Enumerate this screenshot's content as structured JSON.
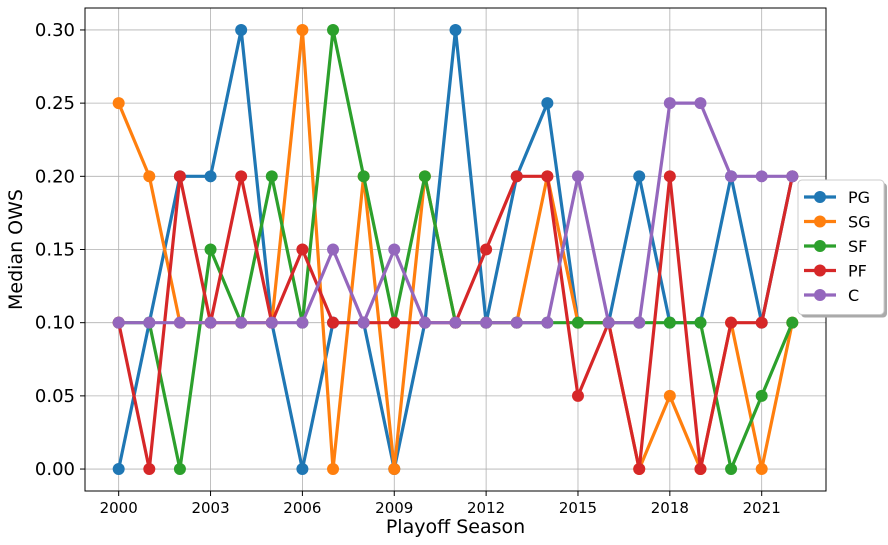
{
  "chart_data": {
    "type": "line",
    "title": "",
    "xlabel": "Playoff Season",
    "ylabel": "Median OWS",
    "xlim": [
      1998.9,
      2023.1
    ],
    "ylim": [
      -0.015,
      0.315
    ],
    "x_ticks": [
      2000,
      2003,
      2006,
      2009,
      2012,
      2015,
      2018,
      2021
    ],
    "y_ticks": [
      0.0,
      0.05,
      0.1,
      0.15,
      0.2,
      0.25,
      0.3
    ],
    "y_tick_labels": [
      "0.00",
      "0.05",
      "0.10",
      "0.15",
      "0.20",
      "0.25",
      "0.30"
    ],
    "grid": true,
    "legend_position": "right",
    "x": [
      2000,
      2001,
      2002,
      2003,
      2004,
      2005,
      2006,
      2007,
      2008,
      2009,
      2010,
      2011,
      2012,
      2013,
      2014,
      2015,
      2016,
      2017,
      2018,
      2019,
      2020,
      2021,
      2022
    ],
    "series": [
      {
        "name": "PG",
        "color": "#1f77b4",
        "values": [
          0.0,
          0.1,
          0.2,
          0.2,
          0.3,
          0.1,
          0.0,
          0.1,
          0.1,
          0.0,
          0.1,
          0.3,
          0.1,
          0.2,
          0.25,
          0.1,
          0.1,
          0.2,
          0.1,
          0.1,
          0.2,
          0.1,
          0.2
        ]
      },
      {
        "name": "SG",
        "color": "#ff7f0e",
        "values": [
          0.25,
          0.2,
          0.1,
          0.1,
          0.1,
          0.1,
          0.3,
          0.0,
          0.2,
          0.0,
          0.2,
          0.1,
          0.1,
          0.1,
          0.2,
          0.1,
          0.1,
          0.0,
          0.05,
          0.0,
          0.1,
          0.0,
          0.1
        ]
      },
      {
        "name": "SF",
        "color": "#2ca02c",
        "values": [
          0.1,
          0.1,
          0.0,
          0.15,
          0.1,
          0.2,
          0.1,
          0.3,
          0.2,
          0.1,
          0.2,
          0.1,
          0.1,
          0.1,
          0.1,
          0.1,
          0.1,
          0.1,
          0.1,
          0.1,
          0.0,
          0.05,
          0.1
        ]
      },
      {
        "name": "PF",
        "color": "#d62728",
        "values": [
          0.1,
          0.0,
          0.2,
          0.1,
          0.2,
          0.1,
          0.15,
          0.1,
          0.1,
          0.1,
          0.1,
          0.1,
          0.15,
          0.2,
          0.2,
          0.05,
          0.1,
          0.0,
          0.2,
          0.0,
          0.1,
          0.1,
          0.2
        ]
      },
      {
        "name": "C",
        "color": "#9467bd",
        "values": [
          0.1,
          0.1,
          0.1,
          0.1,
          0.1,
          0.1,
          0.1,
          0.15,
          0.1,
          0.15,
          0.1,
          0.1,
          0.1,
          0.1,
          0.1,
          0.2,
          0.1,
          0.1,
          0.25,
          0.25,
          0.2,
          0.2,
          0.2
        ]
      }
    ]
  }
}
